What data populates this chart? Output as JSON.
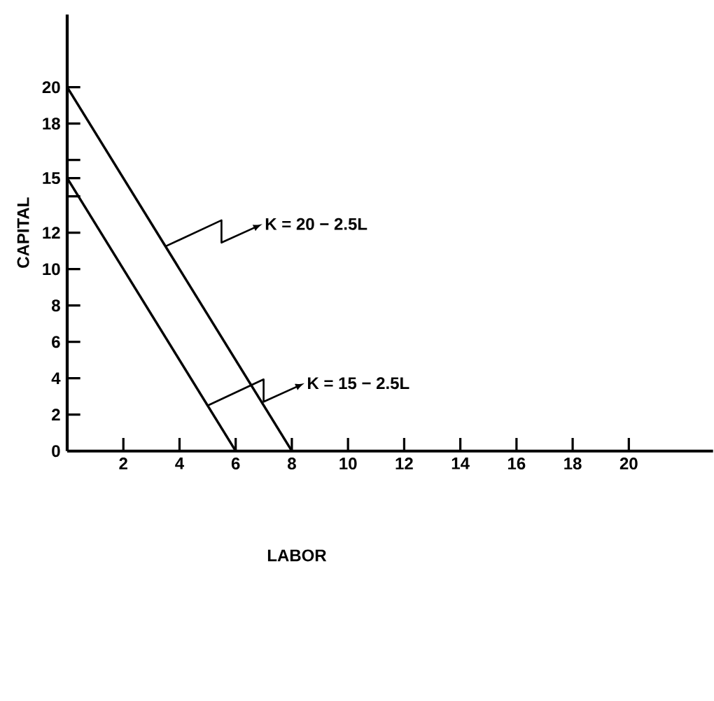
{
  "chart_data": {
    "type": "line",
    "xlabel": "LABOR",
    "ylabel": "CAPITAL",
    "series": [
      {
        "x": [
          0,
          8
        ],
        "values": [
          20,
          0
        ],
        "color": "#000000"
      },
      {
        "x": [
          0,
          6
        ],
        "values": [
          15,
          0
        ],
        "color": "#000000"
      }
    ],
    "xlim": [
      0,
      23
    ],
    "ylim": [
      0,
      24
    ],
    "xticks": [
      2,
      4,
      6,
      8,
      10,
      12,
      14,
      16,
      18,
      20
    ],
    "yticks": [
      0,
      2,
      4,
      6,
      8,
      10,
      12,
      {
        "value": 14,
        "label": null
      },
      15,
      {
        "value": 16,
        "label": null
      },
      18,
      20
    ],
    "annotations": [
      {
        "text": "K = 20 − 2.5L",
        "x": 3.5,
        "y": 11.25
      },
      {
        "text": "K = 15 − 2.5L",
        "x": 5,
        "y": 2.5
      }
    ],
    "grid": false,
    "marker": "none",
    "line_style": "solid"
  }
}
